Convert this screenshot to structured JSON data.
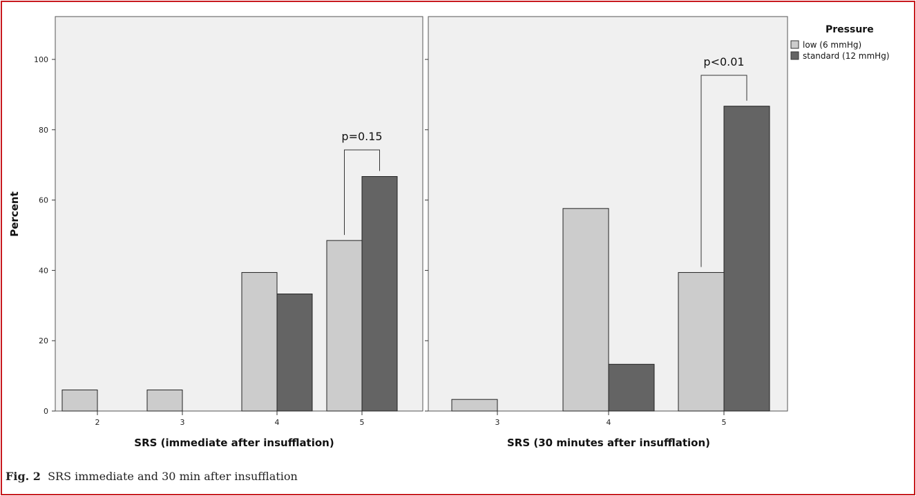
{
  "chart_data": [
    {
      "type": "bar",
      "categories": [
        "2",
        "3",
        "4",
        "5"
      ],
      "series": [
        {
          "name": "low (6 mmHg)",
          "values": [
            6,
            6,
            39.4,
            48.5
          ]
        },
        {
          "name": "standard (12 mmHg)",
          "values": [
            0,
            0,
            33.3,
            66.7
          ]
        }
      ],
      "xlabel": "SRS (immediate after insufflation)",
      "ylabel": "Percent",
      "ylim": [
        0,
        110
      ],
      "yticks": [
        0,
        20,
        40,
        60,
        80,
        100
      ],
      "annotation": {
        "text": "p=0.15",
        "category": "5"
      }
    },
    {
      "type": "bar",
      "categories": [
        "3",
        "4",
        "5"
      ],
      "series": [
        {
          "name": "low (6 mmHg)",
          "values": [
            3.3,
            57.6,
            39.4
          ]
        },
        {
          "name": "standard (12 mmHg)",
          "values": [
            0,
            13.3,
            86.7
          ]
        }
      ],
      "xlabel": "SRS (30 minutes after insufflation)",
      "ylabel": "",
      "ylim": [
        0,
        110
      ],
      "yticks": [
        0,
        20,
        40,
        60,
        80,
        100
      ],
      "annotation": {
        "text": "p<0.01",
        "category": "5"
      }
    }
  ],
  "legend": {
    "title": "Pressure",
    "items": [
      {
        "label": "low (6 mmHg)",
        "color": "#cccccc"
      },
      {
        "label": "standard (12 mmHg)",
        "color": "#646464"
      }
    ]
  },
  "colors": {
    "low": "#cccccc",
    "standard": "#646464",
    "panel_bg": "#f0f0f0",
    "frame": "#c8191d"
  },
  "caption": {
    "label": "Fig. 2",
    "text": "SRS immediate and 30 min after insufflation"
  }
}
